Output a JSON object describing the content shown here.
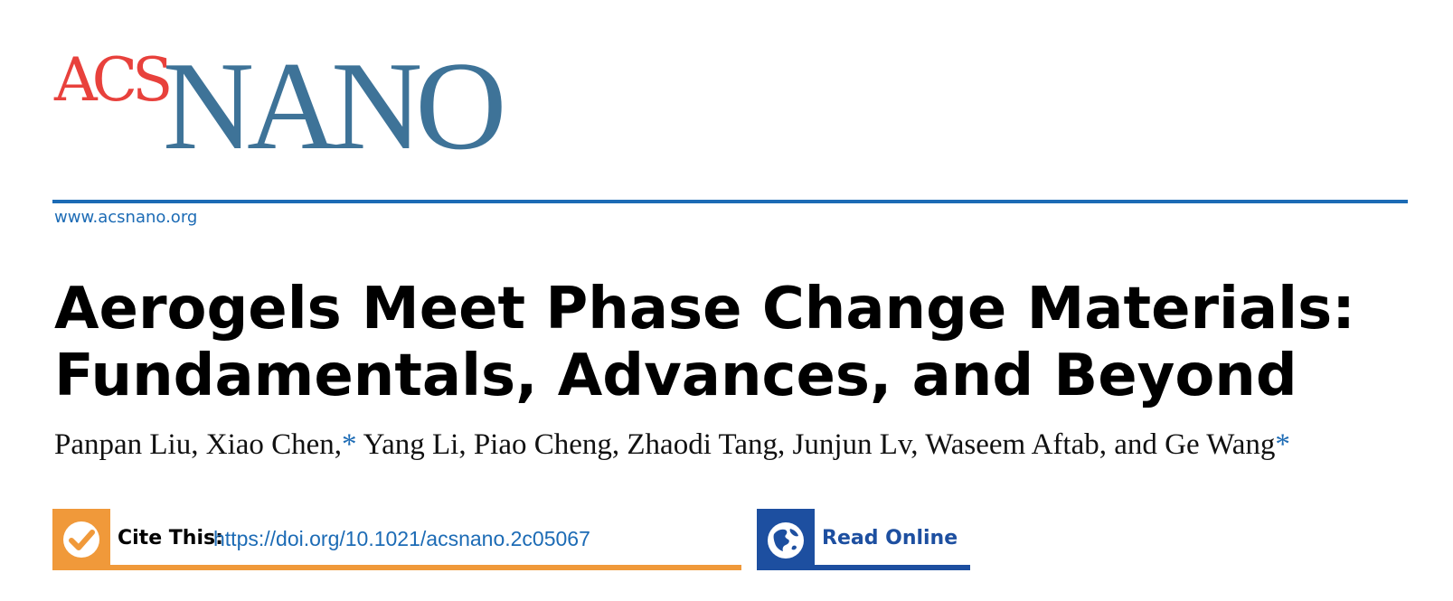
{
  "journal": {
    "logo_part1": "ACS",
    "logo_part2": "NANO",
    "colors": {
      "acs": "#e8413c",
      "nano": "#3e7398"
    }
  },
  "header": {
    "url": "www.acsnano.org",
    "rule_color": "#1c6bb5"
  },
  "article": {
    "title_line1": "Aerogels Meet Phase Change Materials:",
    "title_line2": "Fundamentals, Advances, and Beyond",
    "authors": [
      "Panpan Liu, ",
      "Xiao Chen,",
      " Yang Li, Piao Cheng, Zhaodi Tang, Junjun Lv, Waseem Aftab, and Ge Wang"
    ],
    "corresponding_mark": "*"
  },
  "cite": {
    "label": "Cite This:",
    "doi_url": "https://doi.org/10.1021/acsnano.2c05067",
    "icon": "checkmark-icon",
    "color": "#f0993a"
  },
  "read_online": {
    "label": "Read Online",
    "icon": "globe-icon",
    "color": "#1d4fa0"
  }
}
